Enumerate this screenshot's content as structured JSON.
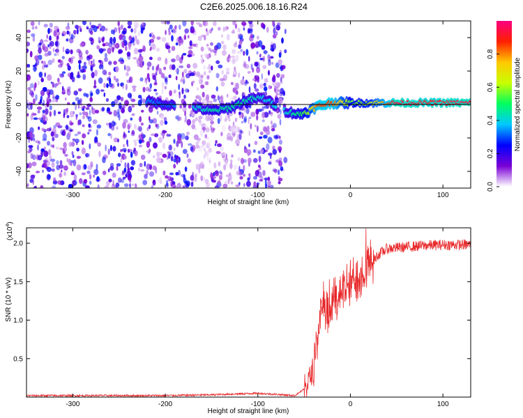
{
  "title": "C2E6.2025.006.18.16.R24",
  "colors": {
    "frame": "#000000",
    "snr_line": "#e8282a",
    "zero_line": "#000000"
  },
  "chart_data": [
    {
      "type": "heatmap",
      "xlabel": "Height of straight line (km)",
      "ylabel": "Frequency (Hz)",
      "xlim": [
        -350,
        130
      ],
      "ylim": [
        -50,
        50
      ],
      "xticks": [
        -300,
        -200,
        -100,
        0,
        100
      ],
      "yticks": [
        -40,
        -20,
        0,
        20,
        40
      ],
      "colorbar": {
        "label": "Normalized spectral amplitude",
        "range": [
          0,
          1
        ],
        "ticks": [
          "0.0",
          "0.2",
          "0.4",
          "0.6",
          "0.8"
        ],
        "tick_values": [
          0,
          0.2,
          0.4,
          0.6,
          0.8
        ],
        "colormap": [
          "#ffffff",
          "#7a00d6",
          "#0000ff",
          "#00c8ff",
          "#00ff60",
          "#c8ff00",
          "#ffc800",
          "#ff2000",
          "#ff0080"
        ]
      },
      "noise_region": [
        -350,
        -70
      ],
      "signal_ridge": {
        "x": [
          -220,
          -200,
          -165,
          -150,
          -130,
          -110,
          -95,
          -70,
          -55,
          -45,
          -35,
          -20,
          0,
          20,
          50,
          80,
          130
        ],
        "freq": [
          2,
          0,
          -2,
          -4,
          -2,
          3,
          4,
          -4,
          -6,
          -4,
          -1,
          1,
          1,
          1,
          1,
          1,
          1
        ],
        "amplitude": [
          0.35,
          0.3,
          0.4,
          0.45,
          0.45,
          0.45,
          0.4,
          0.4,
          0.5,
          0.6,
          0.85,
          0.85,
          0.55,
          0.6,
          0.95,
          0.9,
          0.95
        ]
      }
    },
    {
      "type": "line",
      "xlabel": "Height of straight line (km)",
      "ylabel": "SNR (10 * v/v)",
      "y_multiplier": "(x10",
      "y_multiplier_exp": "4",
      "xlim": [
        -350,
        130
      ],
      "ylim": [
        0,
        2.2
      ],
      "xticks": [
        -300,
        -200,
        -100,
        0,
        100
      ],
      "yticks": [
        0.5,
        1.0,
        1.5,
        2.0
      ],
      "series": [
        {
          "x": [
            -350,
            -200,
            -150,
            -100,
            -60,
            -50,
            -42,
            -38,
            -34,
            -30,
            -28,
            -25,
            -20,
            -15,
            -10,
            -5,
            0,
            5,
            10,
            20,
            30,
            40,
            60,
            80,
            100,
            130
          ],
          "y": [
            0.02,
            0.02,
            0.03,
            0.05,
            0.02,
            0.1,
            0.3,
            0.5,
            0.9,
            1.1,
            1.15,
            1.0,
            1.2,
            1.3,
            1.4,
            1.4,
            1.45,
            1.55,
            1.6,
            1.7,
            1.85,
            1.93,
            1.95,
            1.97,
            1.98,
            1.98
          ]
        }
      ]
    }
  ]
}
